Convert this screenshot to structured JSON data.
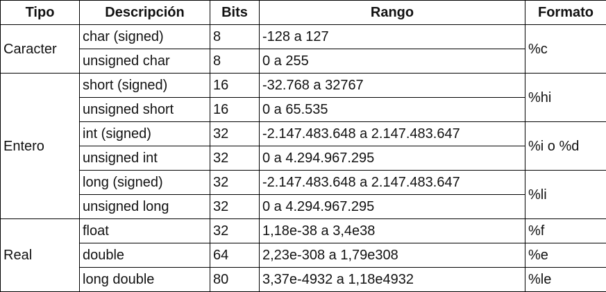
{
  "headers": {
    "tipo": "Tipo",
    "descripcion": "Descripción",
    "bits": "Bits",
    "rango": "Rango",
    "formato": "Formato"
  },
  "groups": [
    {
      "tipo": "Caracter",
      "rows": [
        {
          "descripcion": "char (signed)",
          "bits": "8",
          "rango": "-128 a 127"
        },
        {
          "descripcion": "unsigned char",
          "bits": "8",
          "rango": "0 a 255"
        }
      ],
      "formatos": [
        "%c"
      ]
    },
    {
      "tipo": "Entero",
      "rows": [
        {
          "descripcion": "short (signed)",
          "bits": "16",
          "rango": "-32.768 a 32767"
        },
        {
          "descripcion": "unsigned short",
          "bits": "16",
          "rango": "0 a 65.535"
        },
        {
          "descripcion": "int (signed)",
          "bits": "32",
          "rango": "-2.147.483.648 a 2.147.483.647"
        },
        {
          "descripcion": "unsigned int",
          "bits": "32",
          "rango": "0 a 4.294.967.295"
        },
        {
          "descripcion": "long (signed)",
          "bits": "32",
          "rango": "-2.147.483.648 a 2.147.483.647"
        },
        {
          "descripcion": "unsigned long",
          "bits": "32",
          "rango": "0 a 4.294.967.295"
        }
      ],
      "formatos": [
        "%hi",
        "%i o %d",
        "%li"
      ]
    },
    {
      "tipo": "Real",
      "rows": [
        {
          "descripcion": "float",
          "bits": "32",
          "rango": "1,18e-38 a 3,4e38"
        },
        {
          "descripcion": "double",
          "bits": "64",
          "rango": "2,23e-308 a 1,79e308"
        },
        {
          "descripcion": "long double",
          "bits": "80",
          "rango": "3,37e-4932 a 1,18e4932"
        }
      ],
      "formatos": [
        "%f",
        "%e",
        "%le"
      ]
    }
  ]
}
